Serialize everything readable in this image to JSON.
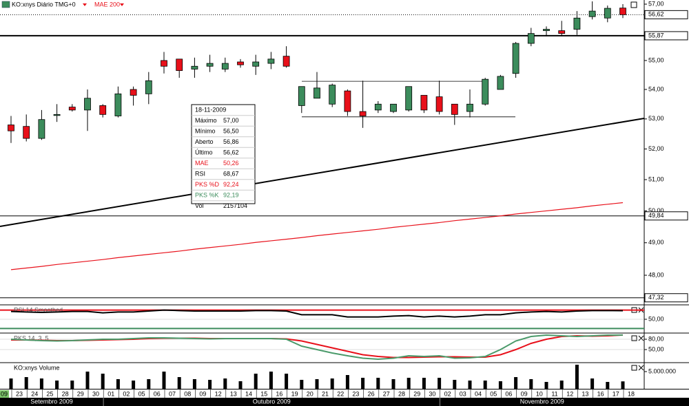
{
  "chart_data": [
    {
      "type": "candlestick",
      "title": "KO:xnys Diário TMG+0",
      "indicator": "MAE 200",
      "start_label": "09",
      "categories": [
        "23",
        "24",
        "25",
        "28",
        "29",
        "30",
        "01",
        "02",
        "05",
        "06",
        "07",
        "08",
        "09",
        "12",
        "13",
        "14",
        "15",
        "16",
        "19",
        "20",
        "21",
        "22",
        "23",
        "26",
        "27",
        "28",
        "29",
        "30",
        "02",
        "03",
        "04",
        "05",
        "06",
        "09",
        "10",
        "11",
        "12",
        "13",
        "16",
        "17",
        "18"
      ],
      "months": [
        "Setembro 2009",
        "Outubro 2009",
        "Novembro 2009"
      ],
      "open": [
        52.8,
        52.75,
        52.35,
        53.12,
        53.4,
        53.3,
        53.45,
        53.1,
        54.0,
        53.85,
        55.0,
        55.05,
        54.7,
        54.8,
        54.7,
        54.95,
        54.8,
        54.9,
        55.15,
        53.45,
        53.7,
        53.5,
        53.95,
        53.25,
        53.3,
        53.25,
        53.3,
        53.8,
        53.75,
        53.5,
        53.25,
        53.5,
        54.0,
        54.55,
        55.6,
        56.05,
        56.05,
        56.1,
        56.55,
        56.5,
        56.86
      ],
      "high": [
        53.1,
        53.15,
        53.3,
        53.5,
        53.5,
        54.0,
        53.5,
        54.1,
        54.1,
        54.6,
        55.3,
        55.05,
        55.1,
        55.2,
        55.1,
        55.05,
        55.2,
        55.3,
        55.5,
        54.1,
        54.6,
        54.2,
        54.0,
        54.3,
        53.6,
        53.5,
        54.1,
        53.8,
        54.3,
        53.5,
        54.0,
        54.4,
        54.5,
        55.65,
        56.15,
        56.2,
        56.4,
        56.75,
        57.1,
        56.95,
        57.0
      ],
      "low": [
        52.2,
        52.25,
        52.3,
        52.9,
        53.25,
        52.6,
        53.05,
        53.05,
        53.45,
        53.5,
        54.55,
        54.4,
        54.4,
        54.6,
        54.6,
        54.75,
        54.5,
        54.7,
        54.75,
        53.2,
        53.7,
        53.4,
        53.1,
        52.7,
        53.2,
        53.2,
        53.25,
        53.2,
        53.15,
        52.8,
        53.05,
        53.45,
        54.0,
        54.4,
        55.5,
        55.85,
        55.85,
        55.9,
        56.45,
        56.35,
        56.5
      ],
      "close": [
        52.6,
        52.35,
        52.98,
        53.15,
        53.3,
        53.7,
        53.15,
        53.85,
        53.8,
        54.3,
        54.8,
        54.65,
        54.8,
        54.9,
        54.9,
        54.85,
        54.95,
        55.05,
        54.8,
        54.1,
        54.05,
        54.15,
        53.25,
        53.1,
        53.5,
        53.5,
        54.1,
        53.3,
        53.25,
        53.15,
        53.5,
        54.35,
        54.45,
        55.6,
        55.95,
        56.1,
        55.95,
        56.5,
        56.75,
        56.85,
        56.62
      ],
      "up_color": "#3c8c5c",
      "down_color": "#e8101a",
      "ylim": [
        47.17,
        57.15
      ],
      "log_scale": true,
      "yticks": [
        {
          "value": 57,
          "label": "57,00"
        },
        {
          "value": 55,
          "label": "55,00"
        },
        {
          "value": 54,
          "label": "54,00"
        },
        {
          "value": 53,
          "label": "53,00"
        },
        {
          "value": 52,
          "label": "52,00"
        },
        {
          "value": 51,
          "label": "51,00"
        },
        {
          "value": 50,
          "label": "50,00"
        },
        {
          "value": 49,
          "label": "49,00"
        },
        {
          "value": 48,
          "label": "48,00"
        }
      ],
      "mae": {
        "color": "#e8101a",
        "values": [
          48.17,
          48.22,
          48.27,
          48.33,
          48.38,
          48.43,
          48.48,
          48.54,
          48.59,
          48.64,
          48.69,
          48.74,
          48.8,
          48.85,
          48.9,
          48.95,
          49.01,
          49.06,
          49.11,
          49.16,
          49.22,
          49.27,
          49.32,
          49.37,
          49.42,
          49.48,
          49.53,
          49.58,
          49.63,
          49.69,
          49.74,
          49.79,
          49.84,
          49.9,
          49.95,
          50.0,
          50.05,
          50.1,
          50.16,
          50.21,
          50.26
        ]
      },
      "price_lines": [
        {
          "value": 56.62,
          "label": "56,62",
          "style": "dotted"
        },
        {
          "value": 55.87,
          "label": "55,87",
          "style": "thick"
        },
        {
          "value": 49.84,
          "label": "49,84",
          "style": "solid"
        },
        {
          "value": 47.32,
          "label": "47,32",
          "style": "solid"
        }
      ],
      "trendline": [
        49.51,
        53.02
      ],
      "channel": [
        54.28,
        53.07
      ],
      "tooltip": {
        "header": "18-11-2009",
        "rows": [
          {
            "label": "Máximo",
            "value": "57,00",
            "color": "#000000"
          },
          {
            "label": "Mínimo",
            "value": "56,50",
            "color": "#000000"
          },
          {
            "label": "Aberto",
            "value": "56,86",
            "color": "#000000"
          },
          {
            "label": "Último",
            "value": "56,62",
            "color": "#000000"
          },
          {
            "label": "MAE",
            "value": "50,26",
            "color": "#e8101a"
          },
          {
            "label": "RSI",
            "value": "68,67",
            "color": "#000000"
          },
          {
            "label": "PKS %D",
            "value": "92,24",
            "color": "#e8101a"
          },
          {
            "label": "PKS %K",
            "value": "92,19",
            "color": "#3c8c5c"
          },
          {
            "label": "Vol",
            "value": "2157104",
            "color": "#000000"
          }
        ]
      }
    },
    {
      "type": "line",
      "title": "RSI 14 Smoothed",
      "ylim": [
        23,
        80
      ],
      "yticks": [
        {
          "value": 50,
          "label": "50,00"
        }
      ],
      "levels": [
        {
          "value": 70,
          "color": "#e8101a"
        },
        {
          "value": 30,
          "color": "#3c8c5c"
        }
      ],
      "series": [
        {
          "color": "#000000",
          "values": [
            67,
            66,
            65,
            66,
            67,
            67,
            64,
            66,
            66,
            68,
            70,
            69,
            68,
            68,
            68,
            68,
            69,
            69,
            68,
            60,
            60,
            60,
            55,
            55,
            55,
            57,
            58,
            55,
            57,
            55,
            57,
            60,
            60,
            64,
            66,
            67,
            66,
            68,
            69,
            69,
            68.67
          ]
        }
      ]
    },
    {
      "type": "line",
      "title": "PKS 14, 3, 5",
      "ylim": [
        12,
        96
      ],
      "yticks": [
        {
          "value": 80,
          "label": "80,00"
        },
        {
          "value": 50,
          "label": "50,00"
        }
      ],
      "series": [
        {
          "color": "#e8101a",
          "values": [
            78,
            78,
            77,
            76,
            76,
            77,
            78,
            79,
            80,
            82,
            83,
            83,
            83,
            82,
            82,
            82,
            82,
            82,
            81,
            75,
            65,
            55,
            45,
            35,
            30,
            27,
            27,
            28,
            29,
            29,
            28,
            28,
            35,
            50,
            68,
            80,
            88,
            90,
            89,
            90,
            92.24
          ]
        },
        {
          "color": "#4a9a6a",
          "values": [
            80,
            78,
            76,
            75,
            76,
            78,
            80,
            80,
            82,
            84,
            84,
            83,
            82,
            81,
            82,
            82,
            82,
            82,
            80,
            60,
            50,
            40,
            32,
            25,
            22,
            25,
            32,
            30,
            32,
            25,
            26,
            30,
            50,
            75,
            88,
            92,
            90,
            88,
            90,
            92,
            92.19
          ]
        }
      ]
    },
    {
      "type": "bar",
      "title": "KO:xnys Volume",
      "color": "#000000",
      "ylim": [
        0,
        7400000
      ],
      "yticks": [
        {
          "value": 5000000,
          "label": "5.000.000"
        }
      ],
      "values": [
        3000000,
        3400000,
        3000000,
        2400000,
        2400000,
        5000000,
        4400000,
        2800000,
        2400000,
        2800000,
        5000000,
        3400000,
        2800000,
        2600000,
        3000000,
        2200000,
        4400000,
        5000000,
        4400000,
        2600000,
        2800000,
        3000000,
        4000000,
        3200000,
        3200000,
        2800000,
        3200000,
        3200000,
        3200000,
        2600000,
        2400000,
        2400000,
        2200000,
        3400000,
        2800000,
        2000000,
        2400000,
        7000000,
        3000000,
        2000000,
        2157104
      ]
    }
  ]
}
